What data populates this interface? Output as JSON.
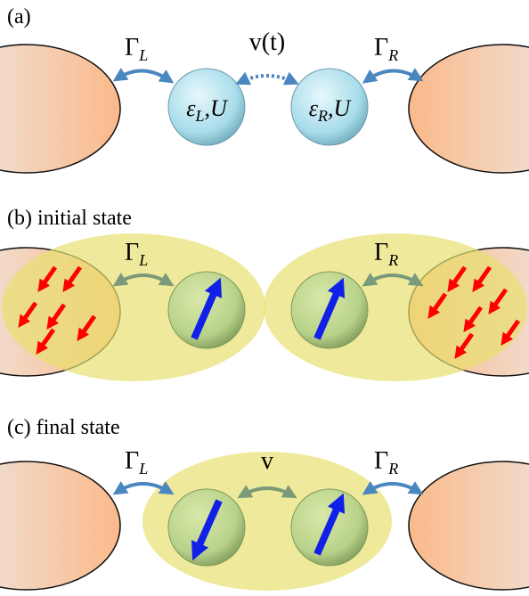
{
  "panels": [
    {
      "label": "(a)",
      "gamma_left": {
        "symbol": "Γ",
        "subscript": "L"
      },
      "coupling": "v(t)",
      "gamma_right": {
        "symbol": "Γ",
        "subscript": "R"
      },
      "dot_left": {
        "symbol": "ε",
        "subscript": "L",
        "suffix": ",U"
      },
      "dot_right": {
        "symbol": "ε",
        "subscript": "R",
        "suffix": ",U"
      }
    },
    {
      "label": "(b) initial state",
      "gamma_left": {
        "symbol": "Γ",
        "subscript": "L"
      },
      "gamma_right": {
        "symbol": "Γ",
        "subscript": "R"
      }
    },
    {
      "label": "(c) final state",
      "gamma_left": {
        "symbol": "Γ",
        "subscript": "L"
      },
      "coupling": "v",
      "gamma_right": {
        "symbol": "Γ",
        "subscript": "R"
      }
    }
  ]
}
